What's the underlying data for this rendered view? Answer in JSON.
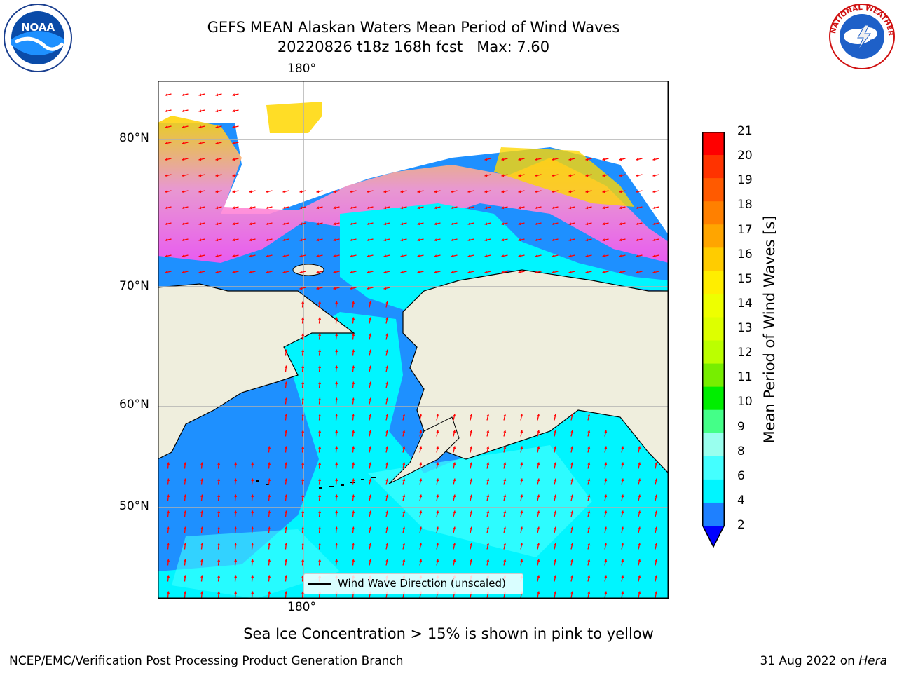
{
  "header": {
    "title_line1": "GEFS MEAN Alaskan Waters Mean Period of Wind Waves",
    "title_line2": "20220826 t18z 168h fcst   Max: 7.60"
  },
  "logos": {
    "left": "noaa-logo",
    "left_text": "NOAA",
    "right": "nws-logo",
    "right_text": "NATIONAL WEATHER SERVICE"
  },
  "map": {
    "lat_labels": [
      "80°N",
      "70°N",
      "60°N",
      "50°N"
    ],
    "lon_label_top": "180°",
    "lon_label_bottom": "180°",
    "legend_label": "Wind Wave Direction (unscaled)",
    "colors": {
      "land": "#efeedd",
      "ocean_low": "#1e90ff",
      "ocean_mid": "#00f5ff",
      "ocean_high": "#40ffff",
      "ice_pink": "#ff55ee",
      "ice_yellow": "#ffd700",
      "arrow": "#ff0000"
    }
  },
  "colorbar": {
    "label": "Mean Period of Wind Waves [s]",
    "ticks": [
      "21",
      "20",
      "19",
      "18",
      "17",
      "16",
      "15",
      "14",
      "13",
      "12",
      "11",
      "10",
      "9",
      "8",
      "6",
      "4",
      "2"
    ],
    "colors": [
      "#ff0000",
      "#ff3300",
      "#ff5a00",
      "#ff8000",
      "#ffa500",
      "#ffcc00",
      "#ffee00",
      "#eeff00",
      "#ddff00",
      "#bbff00",
      "#77ee00",
      "#00ee00",
      "#44ff88",
      "#99ffee",
      "#44ffff",
      "#00f5ff",
      "#1e80ff"
    ],
    "under_color": "#0000ff"
  },
  "footer": {
    "subtitle": "Sea Ice Concentration > 15% is shown in pink to yellow",
    "left": "NCEP/EMC/Verification Post Processing Product Generation Branch",
    "date": "31 Aug 2022 on",
    "machine": "Hera"
  }
}
